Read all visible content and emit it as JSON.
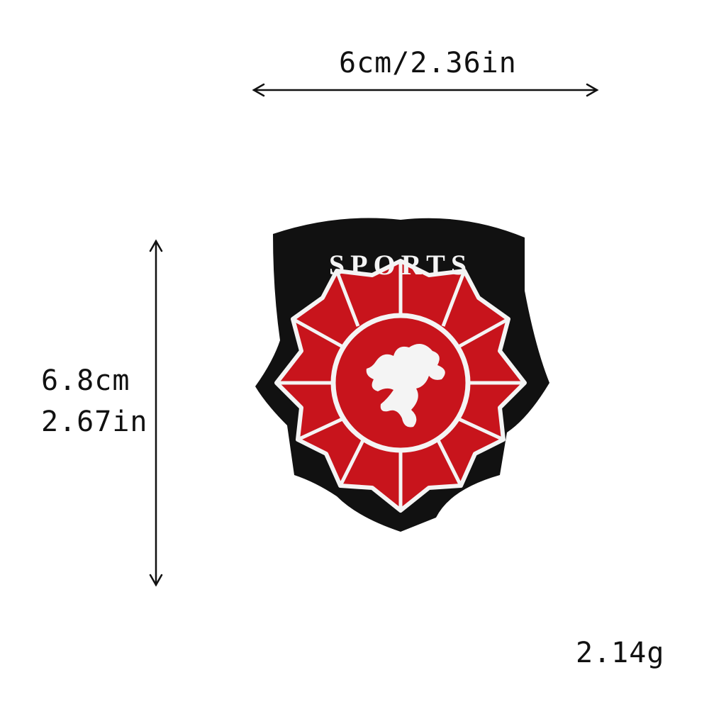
{
  "dimensions": {
    "width_label": "6cm/2.36in",
    "height_cm_label": "6.8cm",
    "height_in_label": "2.67in",
    "weight_label": "2.14g"
  },
  "patch": {
    "text": "SPORTS",
    "colors": {
      "border": "#111111",
      "petal_red": "#c8141c",
      "stitch_white": "#f4f4f4"
    }
  }
}
